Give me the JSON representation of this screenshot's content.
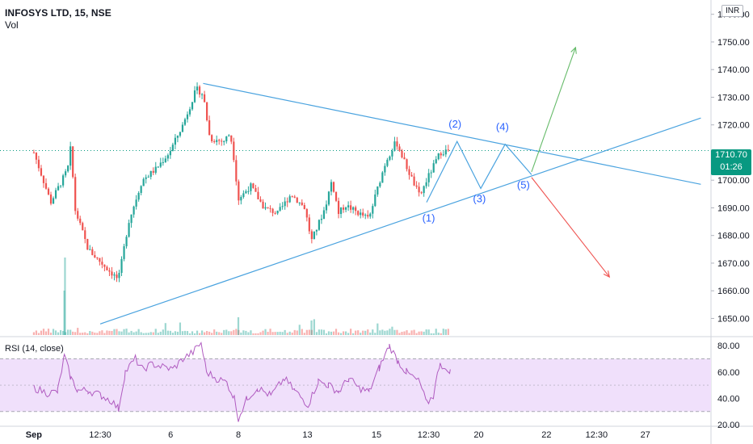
{
  "header": {
    "symbol": "INFOSYS LTD, 15, NSE",
    "volume_label": "Vol",
    "currency": "INR"
  },
  "rsi_panel": {
    "label": "RSI (14, close)",
    "ticks": [
      "80.00",
      "60.00",
      "40.00",
      "20.00"
    ],
    "rsi_min": 20,
    "rsi_max": 85
  },
  "last_price": {
    "value": "1710.70",
    "countdown": "01:26"
  },
  "colors": {
    "up": "#26a69a",
    "down": "#ef5350",
    "trendline": "#4aa3df",
    "bullish_arrow": "#66bb6a",
    "bearish_arrow": "#ef5350",
    "rsi_line": "#b05bc0",
    "rsi_band": "#f0e0fb",
    "wave_label": "#2962ff"
  },
  "chart_data": {
    "type": "candlestick",
    "title": "INFOSYS LTD, 15, NSE",
    "ylim": [
      1644,
      1764
    ],
    "y_ticks": [
      1650,
      1660,
      1670,
      1680,
      1690,
      1700,
      1710,
      1720,
      1730,
      1740,
      1750,
      1760
    ],
    "y_tick_labels": [
      "1650.00",
      "1660.00",
      "1670.00",
      "1680.00",
      "1690.00",
      "1700.00",
      "1710.00",
      "1720.00",
      "1730.00",
      "1740.00",
      "1750.00",
      "1760.00"
    ],
    "x_ticks": [
      "Sep",
      "12:30",
      "6",
      "8",
      "13",
      "15",
      "12:30",
      "20",
      "22",
      "12:30",
      "27"
    ],
    "x_tick_pos": [
      0,
      9.8,
      20.2,
      30.2,
      40.4,
      50.6,
      58.3,
      65.7,
      75.7,
      83.1,
      90.3
    ],
    "x_range": [
      -5,
      100
    ],
    "price_path": [
      [
        0,
        1710
      ],
      [
        2.5,
        1692
      ],
      [
        5,
        1704
      ],
      [
        5.5,
        1713
      ],
      [
        6,
        1690
      ],
      [
        8,
        1675
      ],
      [
        10,
        1670
      ],
      [
        12.5,
        1664
      ],
      [
        14,
        1685
      ],
      [
        16,
        1700
      ],
      [
        18,
        1704
      ],
      [
        20,
        1710
      ],
      [
        22,
        1720
      ],
      [
        24,
        1733
      ],
      [
        25,
        1731
      ],
      [
        26,
        1715
      ],
      [
        28,
        1714
      ],
      [
        29,
        1717
      ],
      [
        29.6,
        1707
      ],
      [
        30.2,
        1693
      ],
      [
        32,
        1698
      ],
      [
        34,
        1690
      ],
      [
        36,
        1688
      ],
      [
        38,
        1695
      ],
      [
        40,
        1690
      ],
      [
        41,
        1678
      ],
      [
        43,
        1690
      ],
      [
        44,
        1700
      ],
      [
        45,
        1688
      ],
      [
        46,
        1691
      ],
      [
        48,
        1688
      ],
      [
        49.5,
        1686
      ],
      [
        50.5,
        1695
      ],
      [
        52,
        1707
      ],
      [
        53.5,
        1714
      ],
      [
        55,
        1705
      ],
      [
        57,
        1694
      ],
      [
        58,
        1700
      ],
      [
        60,
        1710
      ],
      [
        61.5,
        1711
      ]
    ],
    "upper_trendline": [
      [
        25,
        1735
      ],
      [
        98.5,
        1698.5
      ]
    ],
    "lower_trendline": [
      [
        9.8,
        1648
      ],
      [
        98.5,
        1722.5
      ]
    ],
    "last_price_line": 1710.7,
    "wave_path": [
      [
        58,
        1692
      ],
      [
        62.5,
        1714
      ],
      [
        66,
        1697
      ],
      [
        69.6,
        1713
      ],
      [
        73.5,
        1702
      ]
    ],
    "wave_labels": [
      {
        "text": "(1)",
        "x": 58.3,
        "y": 1685
      },
      {
        "text": "(2)",
        "x": 62.2,
        "y": 1719
      },
      {
        "text": "(3)",
        "x": 65.8,
        "y": 1692
      },
      {
        "text": "(4)",
        "x": 69.2,
        "y": 1718
      },
      {
        "text": "(5)",
        "x": 72.3,
        "y": 1697
      }
    ],
    "bullish_arrow": [
      [
        73.5,
        1703
      ],
      [
        80,
        1748
      ]
    ],
    "bearish_arrow": [
      [
        73.5,
        1701
      ],
      [
        85,
        1665
      ]
    ],
    "rsi_series": [
      [
        0,
        48
      ],
      [
        2,
        44
      ],
      [
        3.5,
        45
      ],
      [
        4.5,
        72
      ],
      [
        5.5,
        55
      ],
      [
        6.5,
        46
      ],
      [
        8,
        46
      ],
      [
        10,
        42
      ],
      [
        11.5,
        38
      ],
      [
        12.5,
        32
      ],
      [
        13.5,
        60
      ],
      [
        15,
        70
      ],
      [
        16,
        62
      ],
      [
        17.5,
        66
      ],
      [
        19,
        64
      ],
      [
        20.5,
        62
      ],
      [
        22,
        70
      ],
      [
        23.5,
        75
      ],
      [
        24.7,
        82
      ],
      [
        25.5,
        60
      ],
      [
        27,
        55
      ],
      [
        28.5,
        52
      ],
      [
        29.6,
        40
      ],
      [
        30.2,
        25
      ],
      [
        31.5,
        40
      ],
      [
        33,
        48
      ],
      [
        35,
        42
      ],
      [
        37,
        55
      ],
      [
        38.5,
        46
      ],
      [
        40.5,
        35
      ],
      [
        42,
        53
      ],
      [
        43.5,
        50
      ],
      [
        45,
        45
      ],
      [
        46.5,
        55
      ],
      [
        48,
        48
      ],
      [
        49.5,
        45
      ],
      [
        51,
        63
      ],
      [
        52.5,
        80
      ],
      [
        53.8,
        68
      ],
      [
        55,
        60
      ],
      [
        57,
        52
      ],
      [
        58,
        36
      ],
      [
        59,
        42
      ],
      [
        60,
        68
      ],
      [
        60.8,
        60
      ],
      [
        61.5,
        62
      ]
    ]
  }
}
